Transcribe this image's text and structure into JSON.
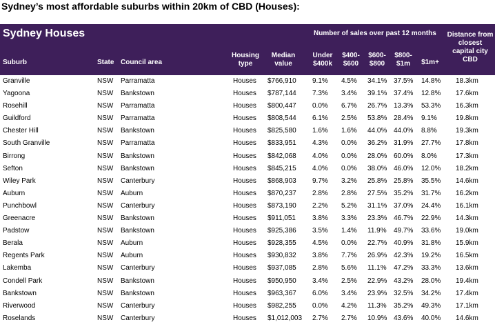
{
  "page_title": "Sydney’s most affordable  suburbs within 20km of CBD (Houses):",
  "table": {
    "title": "Sydney Houses",
    "sales_group_label": "Number of sales over past 12 months",
    "headers": {
      "suburb": "Suburb",
      "state": "State",
      "council": "Council area",
      "housing_type": "Housing type",
      "median": "Median value",
      "b1": "Under $400k",
      "b2": "$400- $600",
      "b3": "$600- $800",
      "b4": "$800- $1m",
      "b5": "$1m+",
      "distance": "Distance from closest capital city CBD"
    },
    "rows": [
      {
        "suburb": "Granville",
        "state": "NSW",
        "council": "Parramatta",
        "type": "Houses",
        "median": "$766,910",
        "b1": "9.1%",
        "b2": "4.5%",
        "b3": "34.1%",
        "b4": "37.5%",
        "b5": "14.8%",
        "distance": "18.3km"
      },
      {
        "suburb": "Yagoona",
        "state": "NSW",
        "council": "Bankstown",
        "type": "Houses",
        "median": "$787,144",
        "b1": "7.3%",
        "b2": "3.4%",
        "b3": "39.1%",
        "b4": "37.4%",
        "b5": "12.8%",
        "distance": "17.6km"
      },
      {
        "suburb": "Rosehill",
        "state": "NSW",
        "council": "Parramatta",
        "type": "Houses",
        "median": "$800,447",
        "b1": "0.0%",
        "b2": "6.7%",
        "b3": "26.7%",
        "b4": "13.3%",
        "b5": "53.3%",
        "distance": "16.3km"
      },
      {
        "suburb": "Guildford",
        "state": "NSW",
        "council": "Parramatta",
        "type": "Houses",
        "median": "$808,544",
        "b1": "6.1%",
        "b2": "2.5%",
        "b3": "53.8%",
        "b4": "28.4%",
        "b5": "9.1%",
        "distance": "19.8km"
      },
      {
        "suburb": "Chester Hill",
        "state": "NSW",
        "council": "Bankstown",
        "type": "Houses",
        "median": "$825,580",
        "b1": "1.6%",
        "b2": "1.6%",
        "b3": "44.0%",
        "b4": "44.0%",
        "b5": "8.8%",
        "distance": "19.3km"
      },
      {
        "suburb": "South Granville",
        "state": "NSW",
        "council": "Parramatta",
        "type": "Houses",
        "median": "$833,951",
        "b1": "4.3%",
        "b2": "0.0%",
        "b3": "36.2%",
        "b4": "31.9%",
        "b5": "27.7%",
        "distance": "17.8km"
      },
      {
        "suburb": "Birrong",
        "state": "NSW",
        "council": "Bankstown",
        "type": "Houses",
        "median": "$842,068",
        "b1": "4.0%",
        "b2": "0.0%",
        "b3": "28.0%",
        "b4": "60.0%",
        "b5": "8.0%",
        "distance": "17.3km"
      },
      {
        "suburb": "Sefton",
        "state": "NSW",
        "council": "Bankstown",
        "type": "Houses",
        "median": "$845,215",
        "b1": "4.0%",
        "b2": "0.0%",
        "b3": "38.0%",
        "b4": "46.0%",
        "b5": "12.0%",
        "distance": "18.2km"
      },
      {
        "suburb": "Wiley Park",
        "state": "NSW",
        "council": "Canterbury",
        "type": "Houses",
        "median": "$868,903",
        "b1": "9.7%",
        "b2": "3.2%",
        "b3": "25.8%",
        "b4": "25.8%",
        "b5": "35.5%",
        "distance": "14.6km"
      },
      {
        "suburb": "Auburn",
        "state": "NSW",
        "council": "Auburn",
        "type": "Houses",
        "median": "$870,237",
        "b1": "2.8%",
        "b2": "2.8%",
        "b3": "27.5%",
        "b4": "35.2%",
        "b5": "31.7%",
        "distance": "16.2km"
      },
      {
        "suburb": "Punchbowl",
        "state": "NSW",
        "council": "Canterbury",
        "type": "Houses",
        "median": "$873,190",
        "b1": "2.2%",
        "b2": "5.2%",
        "b3": "31.1%",
        "b4": "37.0%",
        "b5": "24.4%",
        "distance": "16.1km"
      },
      {
        "suburb": "Greenacre",
        "state": "NSW",
        "council": "Bankstown",
        "type": "Houses",
        "median": "$911,051",
        "b1": "3.8%",
        "b2": "3.3%",
        "b3": "23.3%",
        "b4": "46.7%",
        "b5": "22.9%",
        "distance": "14.3km"
      },
      {
        "suburb": "Padstow",
        "state": "NSW",
        "council": "Bankstown",
        "type": "Houses",
        "median": "$925,386",
        "b1": "3.5%",
        "b2": "1.4%",
        "b3": "11.9%",
        "b4": "49.7%",
        "b5": "33.6%",
        "distance": "19.0km"
      },
      {
        "suburb": "Berala",
        "state": "NSW",
        "council": "Auburn",
        "type": "Houses",
        "median": "$928,355",
        "b1": "4.5%",
        "b2": "0.0%",
        "b3": "22.7%",
        "b4": "40.9%",
        "b5": "31.8%",
        "distance": "15.9km"
      },
      {
        "suburb": "Regents Park",
        "state": "NSW",
        "council": "Auburn",
        "type": "Houses",
        "median": "$930,832",
        "b1": "3.8%",
        "b2": "7.7%",
        "b3": "26.9%",
        "b4": "42.3%",
        "b5": "19.2%",
        "distance": "16.5km"
      },
      {
        "suburb": "Lakemba",
        "state": "NSW",
        "council": "Canterbury",
        "type": "Houses",
        "median": "$937,085",
        "b1": "2.8%",
        "b2": "5.6%",
        "b3": "11.1%",
        "b4": "47.2%",
        "b5": "33.3%",
        "distance": "13.6km"
      },
      {
        "suburb": "Condell Park",
        "state": "NSW",
        "council": "Bankstown",
        "type": "Houses",
        "median": "$950,950",
        "b1": "3.4%",
        "b2": "2.5%",
        "b3": "22.9%",
        "b4": "43.2%",
        "b5": "28.0%",
        "distance": "19.4km"
      },
      {
        "suburb": "Bankstown",
        "state": "NSW",
        "council": "Bankstown",
        "type": "Houses",
        "median": "$963,367",
        "b1": "6.0%",
        "b2": "3.4%",
        "b3": "23.9%",
        "b4": "32.5%",
        "b5": "34.2%",
        "distance": "17.4km"
      },
      {
        "suburb": "Riverwood",
        "state": "NSW",
        "council": "Canterbury",
        "type": "Houses",
        "median": "$982,255",
        "b1": "0.0%",
        "b2": "4.2%",
        "b3": "11.3%",
        "b4": "35.2%",
        "b5": "49.3%",
        "distance": "17.1km"
      },
      {
        "suburb": "Roselands",
        "state": "NSW",
        "council": "Canterbury",
        "type": "Houses",
        "median": "$1,012,003",
        "b1": "2.7%",
        "b2": "2.7%",
        "b3": "10.9%",
        "b4": "43.6%",
        "b5": "40.0%",
        "distance": "14.6km"
      }
    ]
  },
  "colors": {
    "header_bg": "#3e1f5a",
    "header_text": "#ffffff"
  }
}
